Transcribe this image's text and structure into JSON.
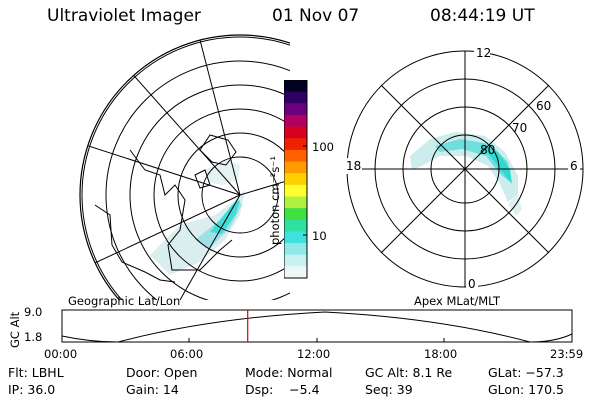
{
  "header": {
    "instrument": "Ultraviolet Imager",
    "date": "01 Nov 07",
    "time": "08:44:19 UT"
  },
  "colorbar": {
    "unit_label": "photon cm⁻²s⁻¹",
    "ticks": [
      "100",
      "10"
    ],
    "colors": [
      "#000020",
      "#300060",
      "#6a0080",
      "#b00060",
      "#d80020",
      "#f02000",
      "#ff6000",
      "#ff9a00",
      "#ffd000",
      "#ffff30",
      "#b0f040",
      "#40e040",
      "#30e0a0",
      "#40e0e0",
      "#90e8e8",
      "#c8f0f0",
      "#ecf8f8"
    ]
  },
  "left_map": {
    "caption": "Geographic Lat/Lon"
  },
  "right_map": {
    "caption": "Apex MLat/MLT",
    "mlt_labels": {
      "top": "12",
      "right": "6",
      "bottom": "0",
      "left": "18"
    },
    "lat_labels": [
      "60",
      "70",
      "80"
    ]
  },
  "altitude_plot": {
    "ylabel": "GC Alt",
    "ytick_top": "9.0",
    "ytick_bottom": "1.8",
    "xticks": [
      "00:00",
      "06:00",
      "12:00",
      "18:00",
      "23:59"
    ],
    "marker_time": "08:44",
    "marker_color": "#dd0000"
  },
  "info": {
    "filter": "Flt: LBHL",
    "door": "Door: Open",
    "mode": "Mode: Normal",
    "gc_alt": "GC Alt: 8.1 Re",
    "glat": "GLat: −57.3",
    "ip": "IP: 36.0",
    "gain": "Gain: 14",
    "dsp": "Dsp:    −5.4",
    "seq": "Seq: 39",
    "glon": "GLon: 170.5"
  }
}
